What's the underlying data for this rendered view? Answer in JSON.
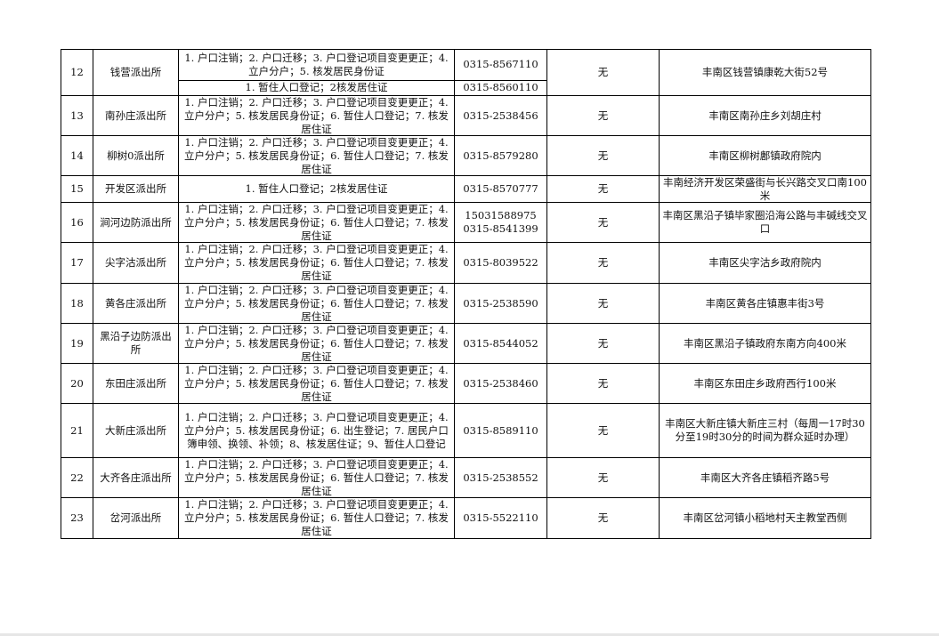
{
  "rows": [
    {
      "no": "12",
      "name": "钱营派出所",
      "services": "1. 户口注销；2. 户口迁移；3. 户口登记项目变更更正；4. 立户分户；5. 核发居民身份证",
      "phone": "0315-8567110",
      "services2": "1. 暂住人口登记；2核发居住证",
      "phone2": "0315-8560110",
      "other": "无",
      "address": "丰南区钱营镇康乾大街52号"
    },
    {
      "no": "13",
      "name": "南孙庄派出所",
      "services": "1. 户口注销；2. 户口迁移；3. 户口登记项目变更更正；4. 立户分户；5. 核发居民身份证；6. 暂住人口登记；7. 核发居住证",
      "phone": "0315-2538456",
      "other": "无",
      "address": "丰南区南孙庄乡刘胡庄村"
    },
    {
      "no": "14",
      "name": "柳树0派出所",
      "services": "1. 户口注销；2. 户口迁移；3. 户口登记项目变更更正；4. 立户分户；5. 核发居民身份证；6. 暂住人口登记；7. 核发居住证",
      "phone": "0315-8579280",
      "other": "无",
      "address": "丰南区柳树鄌镇政府院内"
    },
    {
      "no": "15",
      "name": "开发区派出所",
      "services": "1. 暂住人口登记；2核发居住证",
      "phone": "0315-8570777",
      "other": "无",
      "address": "丰南经济开发区荣盛街与长兴路交叉口南100米"
    },
    {
      "no": "16",
      "name": "涧河边防派出所",
      "services": "1. 户口注销；2. 户口迁移；3. 户口登记项目变更更正；4. 立户分户；5. 核发居民身份证；6. 暂住人口登记；7. 核发居住证",
      "phone": "15031588975\n0315-8541399",
      "other": "无",
      "address": "丰南区黑沿子镇毕家圈沿海公路与丰碱线交叉口"
    },
    {
      "no": "17",
      "name": "尖字沽派出所",
      "services": "1. 户口注销；2. 户口迁移；3. 户口登记项目变更更正；4. 立户分户；5. 核发居民身份证；6. 暂住人口登记；7. 核发居住证",
      "phone": "0315-8039522",
      "other": "无",
      "address": "丰南区尖字沽乡政府院内"
    },
    {
      "no": "18",
      "name": "黄各庄派出所",
      "services": "1. 户口注销；2. 户口迁移；3. 户口登记项目变更更正；4. 立户分户；5. 核发居民身份证；6. 暂住人口登记；7. 核发居住证",
      "phone": "0315-2538590",
      "other": "无",
      "address": "丰南区黄各庄镇惠丰街3号"
    },
    {
      "no": "19",
      "name": "黑沿子边防派出所",
      "services": "1. 户口注销；2. 户口迁移；3. 户口登记项目变更更正；4. 立户分户；5. 核发居民身份证；6. 暂住人口登记；7. 核发居住证",
      "phone": "0315-8544052",
      "other": "无",
      "address": "丰南区黑沿子镇政府东南方向400米"
    },
    {
      "no": "20",
      "name": "东田庄派出所",
      "services": "1. 户口注销；2. 户口迁移；3. 户口登记项目变更更正；4. 立户分户；5. 核发居民身份证；6. 暂住人口登记；7. 核发居住证",
      "phone": "0315-2538460",
      "other": "无",
      "address": "丰南区东田庄乡政府西行100米"
    },
    {
      "no": "21",
      "name": "大新庄派出所",
      "services": "1. 户口注销；2. 户口迁移；3. 户口登记项目变更更正；4. 立户分户；5. 核发居民身份证；6. 出生登记；7. 居民户口簿申领、换领、补领；8、核发居住证；9、暂住人口登记",
      "phone": "0315-8589110",
      "other": "无",
      "address": "丰南区大新庄镇大新庄三村（每周一17时30分至19时30分的时间为群众延时办理）"
    },
    {
      "no": "22",
      "name": "大齐各庄派出所",
      "services": "1. 户口注销；2. 户口迁移；3. 户口登记项目变更更正；4. 立户分户；5. 核发居民身份证；6. 暂住人口登记；7. 核发居住证",
      "phone": "0315-2538552",
      "other": "无",
      "address": "丰南区大齐各庄镇稻齐路5号"
    },
    {
      "no": "23",
      "name": "岔河派出所",
      "services": "1. 户口注销；2. 户口迁移；3. 户口登记项目变更更正；4. 立户分户；5. 核发居民身份证；6. 暂住人口登记；7. 核发居住证",
      "phone": "0315-5522110",
      "other": "无",
      "address": "丰南区岔河镇小稻地村天主教堂西侧"
    }
  ]
}
